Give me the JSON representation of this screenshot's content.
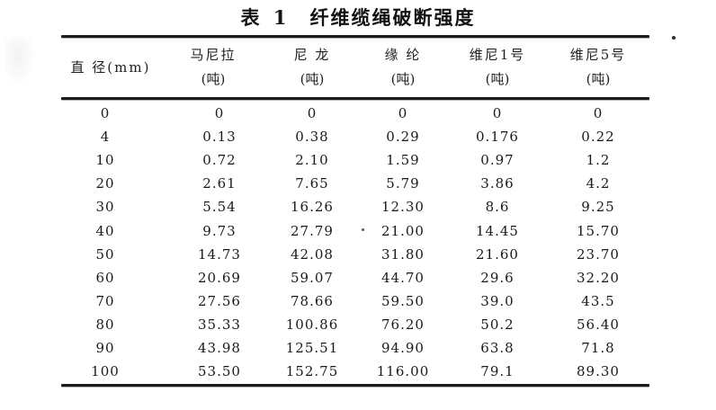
{
  "title": {
    "prefix": "表 1",
    "text": "纤维缆绳破断强度"
  },
  "table": {
    "columns": [
      {
        "label": "直 径(mm)",
        "unit": ""
      },
      {
        "label": "马尼拉",
        "unit": "(吨)"
      },
      {
        "label": "尼 龙",
        "unit": "(吨)"
      },
      {
        "label": "缘 纶",
        "unit": "(吨)"
      },
      {
        "label": "维尼1号",
        "unit": "(吨)"
      },
      {
        "label": "维尼5号",
        "unit": "(吨)"
      }
    ],
    "rows": [
      [
        "0",
        "0",
        "0",
        "0",
        "0",
        "0"
      ],
      [
        "4",
        "0.13",
        "0.38",
        "0.29",
        "0.176",
        "0.22"
      ],
      [
        "10",
        "0.72",
        "2.10",
        "1.59",
        "0.97",
        "1.2"
      ],
      [
        "20",
        "2.61",
        "7.65",
        "5.79",
        "3.86",
        "4.2"
      ],
      [
        "30",
        "5.54",
        "16.26",
        "12.30",
        "8.6",
        "9.25"
      ],
      [
        "40",
        "9.73",
        "27.79",
        "21.00",
        "14.45",
        "15.70"
      ],
      [
        "50",
        "14.73",
        "42.08",
        "31.80",
        "21.60",
        "23.70"
      ],
      [
        "60",
        "20.69",
        "59.07",
        "44.70",
        "29.6",
        "32.20"
      ],
      [
        "70",
        "27.56",
        "78.66",
        "59.50",
        "39.0",
        "43.5"
      ],
      [
        "80",
        "35.33",
        "100.86",
        "76.20",
        "50.2",
        "56.40"
      ],
      [
        "90",
        "43.98",
        "125.51",
        "94.90",
        "63.8",
        "71.8"
      ],
      [
        "100",
        "53.50",
        "152.75",
        "116.00",
        "79.1",
        "89.30"
      ]
    ]
  },
  "colors": {
    "paper": "#ffffff",
    "ink": "#1b1b1b",
    "rule": "#1c1c1c"
  }
}
